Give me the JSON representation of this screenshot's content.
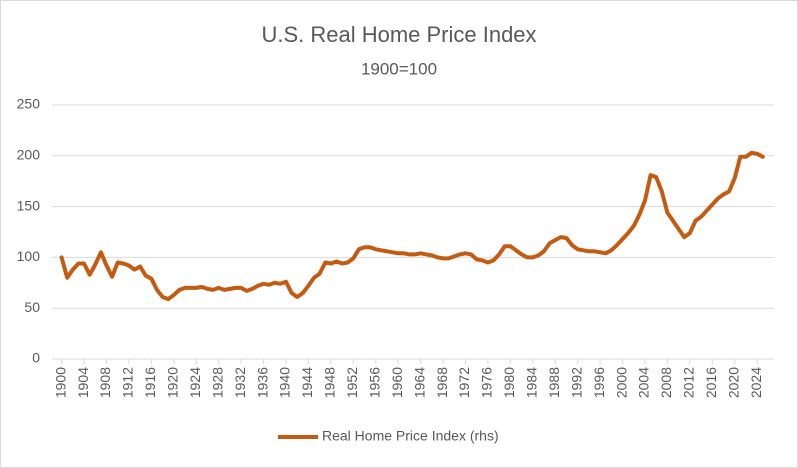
{
  "chart_data": {
    "type": "line",
    "title": "U.S. Real Home Price Index",
    "subtitle": "1900=100",
    "x": [
      1900,
      1901,
      1902,
      1903,
      1904,
      1905,
      1906,
      1907,
      1908,
      1909,
      1910,
      1911,
      1912,
      1913,
      1914,
      1915,
      1916,
      1917,
      1918,
      1919,
      1920,
      1921,
      1922,
      1923,
      1924,
      1925,
      1926,
      1927,
      1928,
      1929,
      1930,
      1931,
      1932,
      1933,
      1934,
      1935,
      1936,
      1937,
      1938,
      1939,
      1940,
      1941,
      1942,
      1943,
      1944,
      1945,
      1946,
      1947,
      1948,
      1949,
      1950,
      1951,
      1952,
      1953,
      1954,
      1955,
      1956,
      1957,
      1958,
      1959,
      1960,
      1961,
      1962,
      1963,
      1964,
      1965,
      1966,
      1967,
      1968,
      1969,
      1970,
      1971,
      1972,
      1973,
      1974,
      1975,
      1976,
      1977,
      1978,
      1979,
      1980,
      1981,
      1982,
      1983,
      1984,
      1985,
      1986,
      1987,
      1988,
      1989,
      1990,
      1991,
      1992,
      1993,
      1994,
      1995,
      1996,
      1997,
      1998,
      1999,
      2000,
      2001,
      2002,
      2003,
      2004,
      2005,
      2006,
      2007,
      2008,
      2009,
      2010,
      2011,
      2012,
      2013,
      2014,
      2015,
      2016,
      2017,
      2018,
      2019,
      2020,
      2021,
      2022,
      2023,
      2024,
      2025
    ],
    "series": [
      {
        "name": "Real Home Price Index (rhs)",
        "color": "#c55a11",
        "values": [
          100,
          80,
          88,
          94,
          94,
          83,
          93,
          105,
          92,
          81,
          95,
          94,
          92,
          88,
          91,
          82,
          79,
          68,
          61,
          59,
          63,
          68,
          70,
          70,
          70,
          71,
          69,
          68,
          70,
          68,
          69,
          70,
          70,
          67,
          69,
          72,
          74,
          73,
          75,
          74,
          76,
          65,
          61,
          65,
          72,
          80,
          84,
          95,
          94,
          96,
          94,
          95,
          99,
          108,
          110,
          110,
          108,
          107,
          106,
          105,
          104,
          104,
          103,
          103,
          104,
          103,
          102,
          100,
          99,
          99,
          101,
          103,
          104,
          103,
          98,
          97,
          95,
          97,
          103,
          111,
          111,
          107,
          103,
          100,
          100,
          102,
          106,
          114,
          117,
          120,
          119,
          112,
          108,
          107,
          106,
          106,
          105,
          104,
          107,
          112,
          118,
          124,
          131,
          142,
          156,
          181,
          179,
          165,
          144,
          136,
          128,
          120,
          124,
          136,
          140,
          146,
          152,
          158,
          162,
          165,
          178,
          199,
          199,
          203,
          202,
          199
        ]
      }
    ],
    "xlim": [
      1899,
      2027
    ],
    "xticks": [
      1900,
      1904,
      1908,
      1912,
      1916,
      1920,
      1924,
      1928,
      1932,
      1936,
      1940,
      1944,
      1948,
      1952,
      1956,
      1960,
      1964,
      1968,
      1972,
      1976,
      1980,
      1984,
      1988,
      1992,
      1996,
      2000,
      2004,
      2008,
      2012,
      2016,
      2020,
      2024
    ],
    "ylim": [
      0,
      250
    ],
    "yticks": [
      0,
      50,
      100,
      150,
      200,
      250
    ],
    "grid": true,
    "legend": "bottom"
  }
}
